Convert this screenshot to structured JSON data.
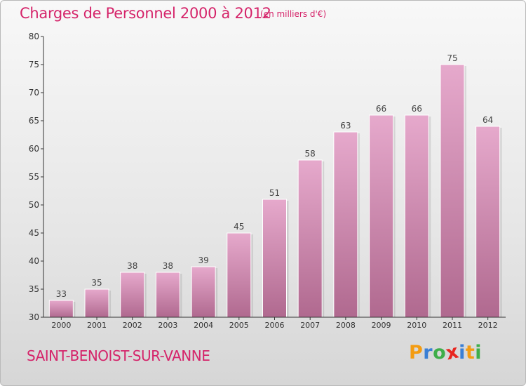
{
  "header": {
    "title": "Charges de Personnel 2000 à 2012",
    "subtitle": "(en milliers d'€)"
  },
  "footer": {
    "commune": "SAINT-BENOIST-SUR-VANNE",
    "logo_letters": [
      "P",
      "r",
      "o",
      "x",
      "i",
      "t",
      "i"
    ],
    "logo_colors": [
      "#f39c12",
      "#3a7fd5",
      "#3fae49",
      "#e8261f",
      "#3a7fd5",
      "#f39c12",
      "#3fae49"
    ]
  },
  "colors": {
    "accent": "#d5246a",
    "bar_top": "#e6a9cc",
    "bar_bottom": "#b0698f",
    "axis": "#333333"
  },
  "chart_data": {
    "type": "bar",
    "categories": [
      "2000",
      "2001",
      "2002",
      "2003",
      "2004",
      "2005",
      "2006",
      "2007",
      "2008",
      "2009",
      "2010",
      "2011",
      "2012"
    ],
    "values": [
      33,
      35,
      38,
      38,
      39,
      45,
      51,
      58,
      63,
      66,
      66,
      75,
      64
    ],
    "ylim": [
      30,
      80
    ],
    "yticks": [
      30,
      35,
      40,
      45,
      50,
      55,
      60,
      65,
      70,
      75,
      80
    ],
    "grid": false,
    "title": "Charges de Personnel 2000 à 2012",
    "xlabel": "",
    "ylabel": ""
  }
}
